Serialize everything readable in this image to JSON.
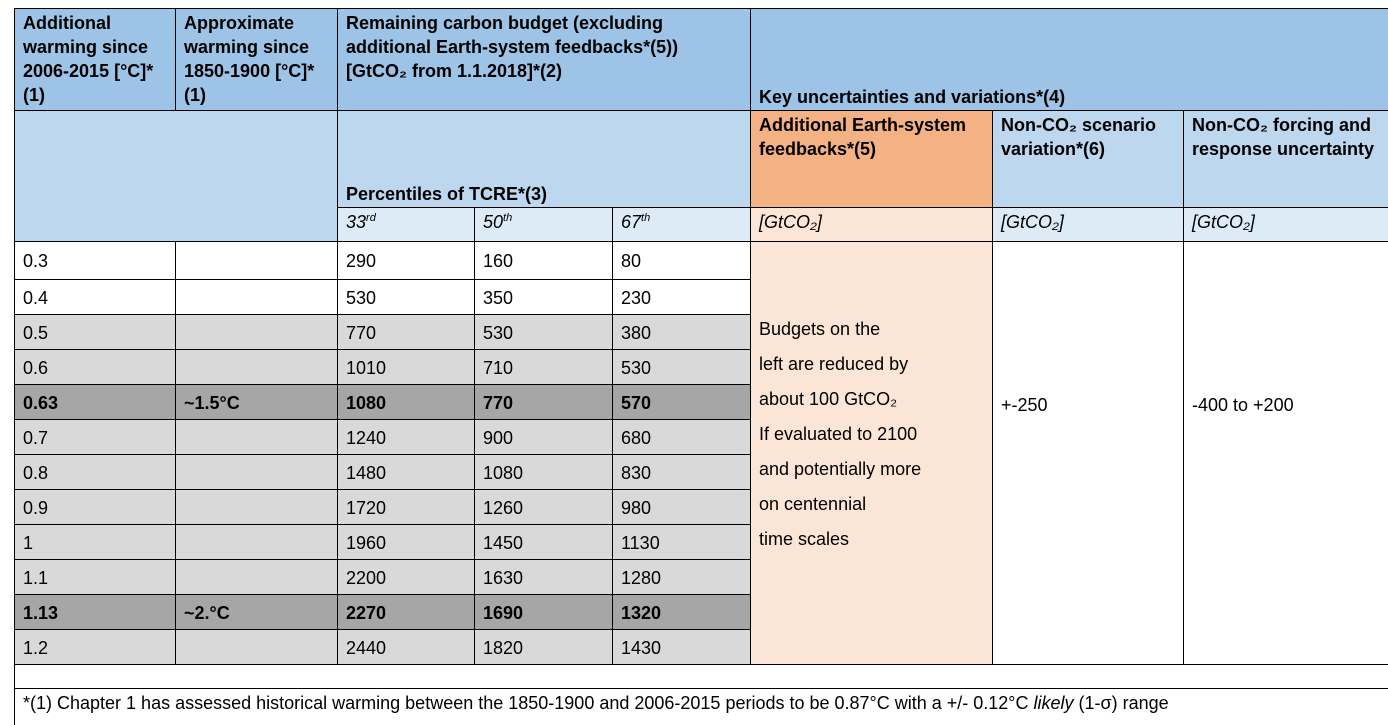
{
  "header": {
    "columns": [
      "Additional warming since 2006-2015 [°C]*(1)",
      "Approximate warming since 1850-1900 [°C]*(1)",
      "Remaining carbon budget (excluding additional Earth-system feedbacks*(5)) [GtCO₂ from 1.1.2018]*(2)",
      "Key uncertainties and variations*(4)"
    ],
    "percentiles_title": "Percentiles of TCRE*(3)",
    "uncertainty_columns": [
      "Additional Earth-system feedbacks*(5)",
      "Non-CO₂ scenario variation*(6)",
      "Non-CO₂ forcing and response uncertainty"
    ],
    "percentiles": [
      {
        "number": "33",
        "suffix": "rd"
      },
      {
        "number": "50",
        "suffix": "th"
      },
      {
        "number": "67",
        "suffix": "th"
      }
    ],
    "units": [
      "[GtCO₂]",
      "[GtCO₂]",
      "[GtCO₂]"
    ]
  },
  "table": {
    "rows": [
      {
        "warming": 0.3,
        "budgets": [
          290,
          160,
          80
        ],
        "shade": "none"
      },
      {
        "warming": 0.4,
        "budgets": [
          530,
          350,
          230
        ],
        "shade": "none"
      },
      {
        "warming": 0.5,
        "budgets": [
          770,
          530,
          380
        ],
        "shade": "light"
      },
      {
        "warming": 0.6,
        "budgets": [
          1010,
          710,
          530
        ],
        "shade": "light"
      },
      {
        "warming": 0.63,
        "approximate": "~1.5°C",
        "budgets": [
          1080,
          770,
          570
        ],
        "shade": "dark"
      },
      {
        "warming": 0.7,
        "budgets": [
          1240,
          900,
          680
        ],
        "shade": "light"
      },
      {
        "warming": 0.8,
        "budgets": [
          1480,
          1080,
          830
        ],
        "shade": "light"
      },
      {
        "warming": 0.9,
        "budgets": [
          1720,
          1260,
          980
        ],
        "shade": "light"
      },
      {
        "warming": 1,
        "budgets": [
          1960,
          1450,
          1130
        ],
        "shade": "light"
      },
      {
        "warming": 1.1,
        "budgets": [
          2200,
          1630,
          1280
        ],
        "shade": "light"
      },
      {
        "warming": 1.13,
        "approximate": "~2.°C",
        "budgets": [
          2270,
          1690,
          1320
        ],
        "shade": "dark"
      },
      {
        "warming": 1.2,
        "budgets": [
          2440,
          1820,
          1430
        ],
        "shade": "light"
      }
    ],
    "feedbacks_note": [
      "Budgets on the",
      "left are reduced by",
      "about 100 GtCO₂",
      "If evaluated to 2100",
      "and potentially more",
      "on centennial",
      "time scales"
    ],
    "scenario_variation": "+-250",
    "forcing_uncertainty": "-400 to +200"
  },
  "footnote": {
    "before": "*(1) Chapter 1 has assessed historical warming between the 1850-1900 and 2006-2015 periods to be 0.87°C with a +/- 0.12°C ",
    "italic": "likely",
    "after": " (1-σ) range"
  }
}
